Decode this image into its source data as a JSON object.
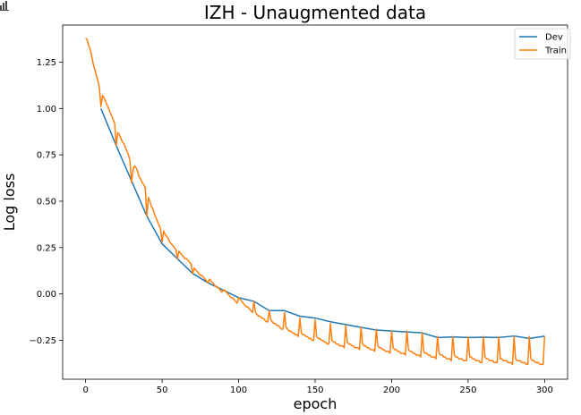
{
  "app_icon": "bar-chart-icon",
  "chart_data": {
    "type": "line",
    "title": "IZH - Unaugmented data",
    "xlabel": "epoch",
    "ylabel": "Log loss",
    "xlim": [
      -15,
      315
    ],
    "ylim": [
      -0.46,
      1.45
    ],
    "xticks": [
      0,
      50,
      100,
      150,
      200,
      250,
      300
    ],
    "xtick_labels": [
      "0",
      "50",
      "100",
      "150",
      "200",
      "250",
      "300"
    ],
    "yticks": [
      -0.25,
      0.0,
      0.25,
      0.5,
      0.75,
      1.0,
      1.25
    ],
    "ytick_labels": [
      "−0.25",
      "0.00",
      "0.25",
      "0.50",
      "0.75",
      "1.00",
      "1.25"
    ],
    "grid": false,
    "legend_position": "upper right",
    "series": [
      {
        "name": "Dev",
        "color": "#1f77b4",
        "x": [
          10,
          20,
          30,
          40,
          50,
          60,
          70,
          80,
          90,
          100,
          110,
          120,
          130,
          140,
          150,
          160,
          170,
          180,
          190,
          200,
          210,
          220,
          230,
          240,
          250,
          260,
          270,
          280,
          290,
          300
        ],
        "y": [
          1.0,
          0.8,
          0.61,
          0.42,
          0.27,
          0.19,
          0.11,
          0.06,
          0.02,
          -0.02,
          -0.04,
          -0.09,
          -0.09,
          -0.12,
          -0.13,
          -0.15,
          -0.165,
          -0.18,
          -0.195,
          -0.2,
          -0.205,
          -0.21,
          -0.235,
          -0.232,
          -0.235,
          -0.233,
          -0.235,
          -0.227,
          -0.24,
          -0.228
        ]
      },
      {
        "name": "Train",
        "color": "#ff7f0e",
        "x": [
          0,
          1,
          2,
          3,
          4,
          5,
          6,
          7,
          8,
          9,
          10,
          11,
          12,
          13,
          14,
          15,
          16,
          17,
          18,
          19,
          20,
          21,
          22,
          23,
          24,
          25,
          26,
          27,
          28,
          29,
          30,
          31,
          32,
          33,
          34,
          35,
          36,
          37,
          38,
          39,
          40,
          41,
          42,
          43,
          44,
          45,
          46,
          47,
          48,
          49,
          50,
          51,
          52,
          53,
          54,
          55,
          56,
          57,
          58,
          59,
          60,
          61,
          62,
          63,
          64,
          65,
          66,
          67,
          68,
          69,
          70,
          71,
          72,
          73,
          74,
          75,
          76,
          77,
          78,
          79,
          80,
          81,
          82,
          83,
          84,
          85,
          86,
          87,
          88,
          89,
          90,
          91,
          92,
          93,
          94,
          95,
          96,
          97,
          98,
          99,
          100,
          101,
          102,
          103,
          104,
          105,
          106,
          107,
          108,
          109,
          110,
          111,
          112,
          113,
          114,
          115,
          116,
          117,
          118,
          119,
          120,
          121,
          122,
          123,
          124,
          125,
          126,
          127,
          128,
          129,
          130,
          131,
          132,
          133,
          134,
          135,
          136,
          137,
          138,
          139,
          140,
          141,
          142,
          143,
          144,
          145,
          146,
          147,
          148,
          149,
          150,
          151,
          152,
          153,
          154,
          155,
          156,
          157,
          158,
          159,
          160,
          161,
          162,
          163,
          164,
          165,
          166,
          167,
          168,
          169,
          170,
          171,
          172,
          173,
          174,
          175,
          176,
          177,
          178,
          179,
          180,
          181,
          182,
          183,
          184,
          185,
          186,
          187,
          188,
          189,
          190,
          191,
          192,
          193,
          194,
          195,
          196,
          197,
          198,
          199,
          200,
          201,
          202,
          203,
          204,
          205,
          206,
          207,
          208,
          209,
          210,
          211,
          212,
          213,
          214,
          215,
          216,
          217,
          218,
          219,
          220,
          221,
          222,
          223,
          224,
          225,
          226,
          227,
          228,
          229,
          230,
          231,
          232,
          233,
          234,
          235,
          236,
          237,
          238,
          239,
          240,
          241,
          242,
          243,
          244,
          245,
          246,
          247,
          248,
          249,
          250,
          251,
          252,
          253,
          254,
          255,
          256,
          257,
          258,
          259,
          260,
          261,
          262,
          263,
          264,
          265,
          266,
          267,
          268,
          269,
          270,
          271,
          272,
          273,
          274,
          275,
          276,
          277,
          278,
          279,
          280,
          281,
          282,
          283,
          284,
          285,
          286,
          287,
          288,
          289,
          290,
          291,
          292,
          293,
          294,
          295,
          296,
          297,
          298,
          299,
          300
        ],
        "y": [
          1.38,
          1.37,
          1.34,
          1.32,
          1.28,
          1.24,
          1.21,
          1.18,
          1.15,
          1.11,
          1.01,
          1.07,
          1.06,
          1.04,
          1.02,
          1.0,
          0.98,
          0.96,
          0.94,
          0.92,
          0.8,
          0.87,
          0.86,
          0.84,
          0.82,
          0.81,
          0.79,
          0.77,
          0.75,
          0.72,
          0.6,
          0.67,
          0.69,
          0.68,
          0.66,
          0.63,
          0.62,
          0.6,
          0.59,
          0.57,
          0.42,
          0.52,
          0.5,
          0.47,
          0.46,
          0.43,
          0.41,
          0.39,
          0.37,
          0.35,
          0.28,
          0.34,
          0.32,
          0.31,
          0.3,
          0.28,
          0.27,
          0.26,
          0.25,
          0.24,
          0.19,
          0.23,
          0.22,
          0.21,
          0.2,
          0.19,
          0.19,
          0.18,
          0.17,
          0.16,
          0.11,
          0.14,
          0.13,
          0.12,
          0.11,
          0.1,
          0.1,
          0.09,
          0.08,
          0.07,
          0.06,
          0.08,
          0.07,
          0.06,
          0.05,
          0.04,
          0.04,
          0.03,
          0.02,
          0.01,
          0.02,
          0.02,
          0.01,
          0.0,
          -0.01,
          -0.02,
          -0.02,
          -0.03,
          -0.04,
          -0.05,
          -0.02,
          -0.03,
          -0.04,
          -0.05,
          -0.06,
          -0.07,
          -0.07,
          -0.08,
          -0.09,
          -0.1,
          -0.04,
          -0.1,
          -0.11,
          -0.12,
          -0.12,
          -0.13,
          -0.13,
          -0.14,
          -0.15,
          -0.15,
          -0.09,
          -0.14,
          -0.15,
          -0.16,
          -0.16,
          -0.17,
          -0.17,
          -0.18,
          -0.19,
          -0.19,
          -0.1,
          -0.18,
          -0.19,
          -0.2,
          -0.2,
          -0.21,
          -0.21,
          -0.22,
          -0.22,
          -0.23,
          -0.13,
          -0.21,
          -0.22,
          -0.22,
          -0.23,
          -0.23,
          -0.24,
          -0.24,
          -0.25,
          -0.25,
          -0.14,
          -0.23,
          -0.24,
          -0.24,
          -0.25,
          -0.25,
          -0.26,
          -0.26,
          -0.27,
          -0.27,
          -0.16,
          -0.25,
          -0.26,
          -0.26,
          -0.27,
          -0.27,
          -0.28,
          -0.28,
          -0.28,
          -0.29,
          -0.17,
          -0.26,
          -0.27,
          -0.27,
          -0.28,
          -0.28,
          -0.29,
          -0.29,
          -0.29,
          -0.3,
          -0.18,
          -0.27,
          -0.28,
          -0.28,
          -0.29,
          -0.29,
          -0.3,
          -0.3,
          -0.3,
          -0.31,
          -0.19,
          -0.28,
          -0.29,
          -0.29,
          -0.3,
          -0.3,
          -0.31,
          -0.31,
          -0.31,
          -0.32,
          -0.2,
          -0.29,
          -0.3,
          -0.3,
          -0.31,
          -0.31,
          -0.32,
          -0.32,
          -0.32,
          -0.33,
          -0.2,
          -0.3,
          -0.31,
          -0.31,
          -0.32,
          -0.32,
          -0.33,
          -0.33,
          -0.33,
          -0.34,
          -0.21,
          -0.31,
          -0.32,
          -0.32,
          -0.33,
          -0.33,
          -0.34,
          -0.34,
          -0.34,
          -0.35,
          -0.23,
          -0.32,
          -0.33,
          -0.33,
          -0.34,
          -0.34,
          -0.35,
          -0.35,
          -0.35,
          -0.36,
          -0.23,
          -0.33,
          -0.34,
          -0.34,
          -0.35,
          -0.35,
          -0.35,
          -0.36,
          -0.36,
          -0.36,
          -0.23,
          -0.34,
          -0.34,
          -0.35,
          -0.35,
          -0.36,
          -0.36,
          -0.36,
          -0.37,
          -0.37,
          -0.23,
          -0.34,
          -0.35,
          -0.35,
          -0.36,
          -0.36,
          -0.36,
          -0.37,
          -0.37,
          -0.37,
          -0.23,
          -0.35,
          -0.35,
          -0.36,
          -0.36,
          -0.36,
          -0.37,
          -0.37,
          -0.37,
          -0.38,
          -0.23,
          -0.35,
          -0.36,
          -0.36,
          -0.36,
          -0.37,
          -0.37,
          -0.37,
          -0.38,
          -0.38,
          -0.23,
          -0.35,
          -0.36,
          -0.36,
          -0.37,
          -0.37,
          -0.37,
          -0.38,
          -0.38,
          -0.38,
          -0.23
        ]
      }
    ]
  }
}
